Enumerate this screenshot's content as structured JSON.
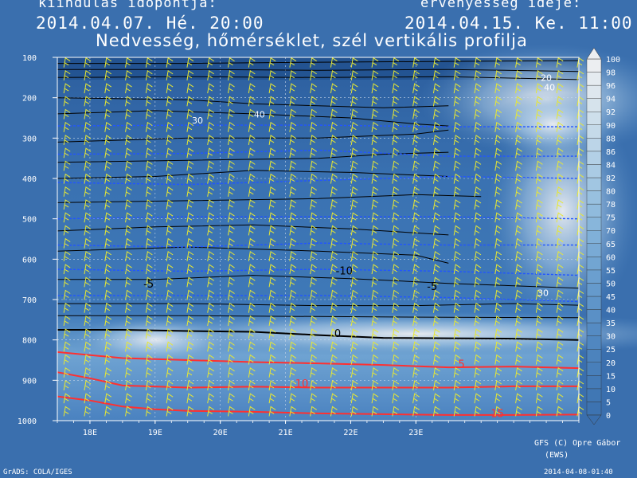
{
  "header": {
    "run_label": "kiindulás időpontja:",
    "valid_label": "érvényesség ideje:",
    "run_time": "2014.04.07. Hé. 20:00",
    "valid_time": "2014.04.15. Ke. 11:00"
  },
  "footer": {
    "credit_line1": "GFS (C) Opre Gábor",
    "credit_line2": "(EWS)",
    "grads": "GrADS: COLA/IGES",
    "stamp": "2014-04-08-01:40"
  },
  "colors": {
    "background": "#3a6fae",
    "humidity_low": "#3a6fae",
    "humidity_high": "#e8e8e8",
    "temp_cold": "#000000",
    "temp_warm": "#ff3030",
    "freezing": "#000000",
    "wind_barb": "#e8e832",
    "isotherm_blue": "#2255ff"
  },
  "chart_data": {
    "type": "heatmap",
    "title": "Nedvesség, hőmérséklet, szél vertikális profilja",
    "y_axis": {
      "ticks": [
        100,
        200,
        300,
        400,
        500,
        600,
        700,
        800,
        900,
        1000
      ],
      "range": [
        100,
        1000
      ],
      "inverted": true
    },
    "x_axis": {
      "ticks": [
        "18E",
        "19E",
        "20E",
        "21E",
        "22E",
        "23E"
      ],
      "range_hours": [
        0,
        160
      ]
    },
    "grid": true,
    "humidity_scale": {
      "ticks": [
        0,
        5,
        10,
        15,
        20,
        25,
        30,
        35,
        40,
        45,
        50,
        55,
        60,
        65,
        70,
        75,
        78,
        80,
        82,
        84,
        86,
        88,
        90,
        92,
        94,
        96,
        98,
        100
      ],
      "colors": [
        "#3a6fae",
        "#3d73b1",
        "#4077b4",
        "#447bb7",
        "#487fba",
        "#4c83bd",
        "#5087c0",
        "#558bc3",
        "#5a90c6",
        "#5f95c9",
        "#659acc",
        "#6b9fcf",
        "#72a5d2",
        "#79aad5",
        "#80b0d8",
        "#88b6db",
        "#90bbdd",
        "#98c0df",
        "#a1c6e2",
        "#aacbe4",
        "#b3d0e6",
        "#bcd5e8",
        "#c5dae9",
        "#cedfeb",
        "#d6e3ec",
        "#dee7ee",
        "#e5ebf0",
        "#eceef1"
      ]
    },
    "temperature_labels": [
      {
        "value": "-10",
        "hour": 88,
        "p": 638,
        "color": "black"
      },
      {
        "value": "-5",
        "hour": 28,
        "p": 670,
        "color": "black"
      },
      {
        "value": "-5",
        "hour": 115,
        "p": 676,
        "color": "black"
      },
      {
        "value": "0",
        "hour": 86,
        "p": 793,
        "color": "black"
      },
      {
        "value": "5",
        "hour": 124,
        "p": 869,
        "color": "red"
      },
      {
        "value": "10",
        "hour": 75,
        "p": 917,
        "color": "red"
      },
      {
        "value": "15",
        "hour": 135,
        "p": 991,
        "color": "red"
      }
    ],
    "humidity_labels": [
      {
        "value": "20",
        "hour": 150,
        "p": 158,
        "color": "white"
      },
      {
        "value": "40",
        "hour": 151,
        "p": 182,
        "color": "white"
      },
      {
        "value": "40",
        "hour": 62,
        "p": 249,
        "color": "white"
      },
      {
        "value": "30",
        "hour": 43,
        "p": 264,
        "color": "white"
      },
      {
        "value": "30",
        "hour": 149,
        "p": 691,
        "color": "white"
      }
    ],
    "isotherms": [
      {
        "value": 0,
        "color": "black",
        "points": [
          [
            0,
            775
          ],
          [
            20,
            775
          ],
          [
            40,
            778
          ],
          [
            60,
            780
          ],
          [
            80,
            788
          ],
          [
            100,
            795
          ],
          [
            120,
            796
          ],
          [
            140,
            797
          ],
          [
            160,
            800
          ]
        ]
      },
      {
        "value": 5,
        "color": "red",
        "points": [
          [
            0,
            830
          ],
          [
            20,
            845
          ],
          [
            40,
            850
          ],
          [
            60,
            855
          ],
          [
            80,
            858
          ],
          [
            100,
            862
          ],
          [
            120,
            868
          ],
          [
            140,
            866
          ],
          [
            160,
            870
          ]
        ]
      },
      {
        "value": 10,
        "color": "red",
        "points": [
          [
            0,
            880
          ],
          [
            10,
            895
          ],
          [
            20,
            913
          ],
          [
            40,
            918
          ],
          [
            60,
            916
          ],
          [
            80,
            918
          ],
          [
            100,
            918
          ],
          [
            120,
            918
          ],
          [
            140,
            915
          ],
          [
            160,
            915
          ]
        ]
      },
      {
        "value": 15,
        "color": "red",
        "points": [
          [
            0,
            940
          ],
          [
            10,
            950
          ],
          [
            20,
            965
          ],
          [
            30,
            972
          ],
          [
            40,
            976
          ],
          [
            60,
            978
          ],
          [
            80,
            982
          ],
          [
            100,
            984
          ],
          [
            120,
            986
          ],
          [
            140,
            986
          ],
          [
            160,
            985
          ]
        ]
      }
    ],
    "blue_dotted_lines": [
      [
        [
          0,
          270
        ],
        [
          40,
          268
        ],
        [
          80,
          268
        ],
        [
          120,
          272
        ],
        [
          160,
          272
        ]
      ],
      [
        [
          0,
          340
        ],
        [
          40,
          338
        ],
        [
          80,
          330
        ],
        [
          120,
          345
        ],
        [
          160,
          345
        ]
      ],
      [
        [
          0,
          410
        ],
        [
          40,
          415
        ],
        [
          80,
          405
        ],
        [
          120,
          395
        ],
        [
          160,
          400
        ]
      ],
      [
        [
          0,
          500
        ],
        [
          40,
          495
        ],
        [
          80,
          495
        ],
        [
          120,
          495
        ],
        [
          160,
          500
        ]
      ],
      [
        [
          0,
          565
        ],
        [
          40,
          570
        ],
        [
          80,
          560
        ],
        [
          120,
          565
        ],
        [
          160,
          565
        ]
      ],
      [
        [
          0,
          625
        ],
        [
          40,
          630
        ],
        [
          80,
          625
        ],
        [
          120,
          630
        ],
        [
          160,
          640
        ]
      ],
      [
        [
          0,
          690
        ],
        [
          40,
          690
        ],
        [
          80,
          690
        ],
        [
          120,
          695
        ],
        [
          160,
          705
        ]
      ]
    ],
    "black_contours": [
      [
        [
          0,
          115
        ],
        [
          40,
          115
        ],
        [
          80,
          112
        ],
        [
          120,
          110
        ],
        [
          160,
          108
        ]
      ],
      [
        [
          0,
          130
        ],
        [
          40,
          130
        ],
        [
          80,
          132
        ],
        [
          120,
          130
        ],
        [
          160,
          135
        ]
      ],
      [
        [
          0,
          150
        ],
        [
          40,
          148
        ],
        [
          80,
          150
        ],
        [
          120,
          148
        ],
        [
          160,
          155
        ]
      ],
      [
        [
          0,
          200
        ],
        [
          40,
          205
        ],
        [
          60,
          215
        ],
        [
          80,
          220
        ],
        [
          100,
          225
        ],
        [
          120,
          220
        ]
      ],
      [
        [
          0,
          240
        ],
        [
          30,
          232
        ],
        [
          60,
          240
        ],
        [
          90,
          250
        ],
        [
          110,
          265
        ],
        [
          120,
          270
        ]
      ],
      [
        [
          0,
          310
        ],
        [
          40,
          300
        ],
        [
          80,
          300
        ],
        [
          110,
          290
        ],
        [
          120,
          280
        ]
      ],
      [
        [
          0,
          360
        ],
        [
          40,
          355
        ],
        [
          80,
          350
        ],
        [
          100,
          340
        ],
        [
          120,
          335
        ]
      ],
      [
        [
          0,
          400
        ],
        [
          30,
          395
        ],
        [
          60,
          380
        ],
        [
          90,
          385
        ],
        [
          120,
          395
        ]
      ],
      [
        [
          0,
          460
        ],
        [
          40,
          455
        ],
        [
          80,
          450
        ],
        [
          110,
          440
        ],
        [
          130,
          445
        ]
      ],
      [
        [
          0,
          530
        ],
        [
          30,
          520
        ],
        [
          60,
          515
        ],
        [
          90,
          525
        ],
        [
          120,
          540
        ]
      ],
      [
        [
          0,
          580
        ],
        [
          40,
          570
        ],
        [
          80,
          580
        ],
        [
          110,
          590
        ],
        [
          120,
          610
        ]
      ],
      [
        [
          0,
          650
        ],
        [
          30,
          650
        ],
        [
          60,
          640
        ],
        [
          90,
          648
        ],
        [
          120,
          660
        ],
        [
          160,
          672
        ]
      ],
      [
        [
          0,
          710
        ],
        [
          40,
          710
        ],
        [
          80,
          715
        ],
        [
          110,
          715
        ],
        [
          140,
          710
        ],
        [
          160,
          714
        ]
      ],
      [
        [
          0,
          740
        ],
        [
          40,
          740
        ],
        [
          80,
          742
        ],
        [
          120,
          744
        ],
        [
          160,
          745
        ]
      ]
    ]
  }
}
